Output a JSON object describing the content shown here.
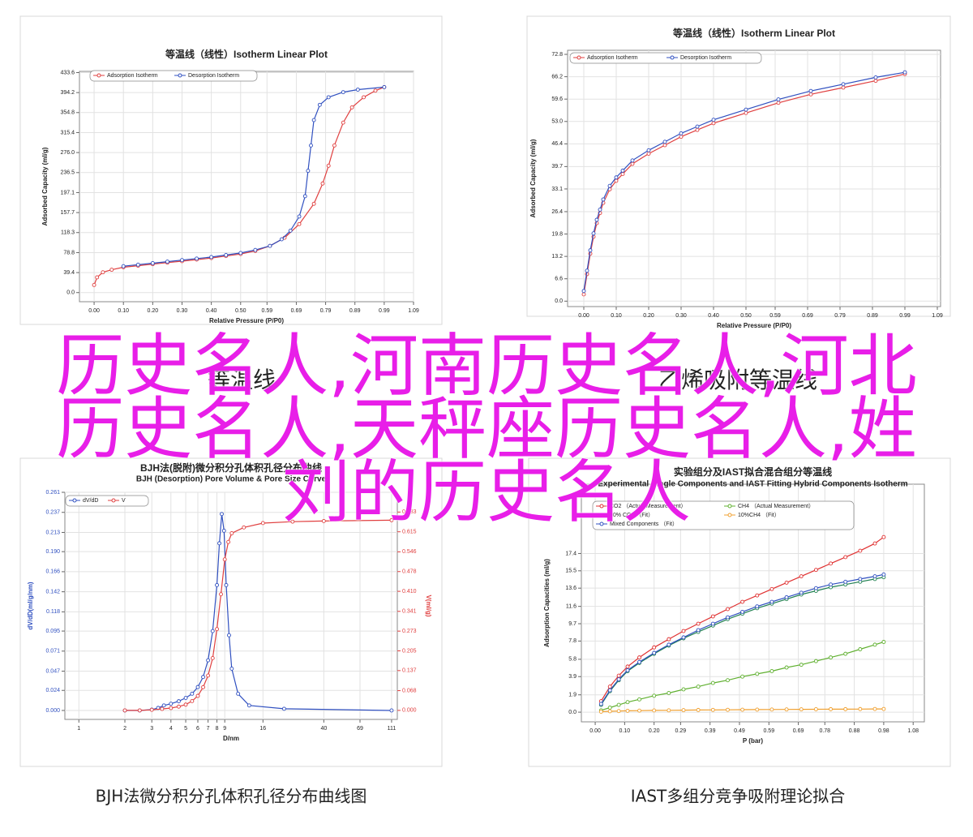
{
  "chart_data": [
    {
      "type": "line",
      "title": "等温线（线性）Isotherm Linear Plot",
      "xlabel": "Relative Pressure (P/P0)",
      "ylabel": "Adsorbed Capacity (ml/g)",
      "xlim": [
        -0.05,
        1.09
      ],
      "ylim": [
        -18,
        436
      ],
      "grid": true,
      "legend": "upper left",
      "xticks": [
        {
          "value": 0,
          "label": "0.00"
        },
        {
          "value": 0.1,
          "label": "0.10"
        },
        {
          "value": 0.2,
          "label": "0.20"
        },
        {
          "value": 0.3,
          "label": "0.30"
        },
        {
          "value": 0.4,
          "label": "0.40"
        },
        {
          "value": 0.5,
          "label": "0.50"
        },
        0.59,
        0.69,
        0.79,
        0.89,
        0.99,
        1.09
      ],
      "yticks": [
        {
          "value": 0,
          "label": "0.0"
        },
        39.4,
        78.8,
        118.3,
        157.7,
        197.1,
        236.5,
        {
          "value": 276,
          "label": "276.0"
        },
        315.4,
        354.8,
        394.2,
        433.6
      ],
      "series": [
        {
          "name": "Adsorption Isotherm",
          "color": "#e04040",
          "x": [
            0,
            0.01,
            0.03,
            0.06,
            0.1,
            0.15,
            0.2,
            0.25,
            0.3,
            0.35,
            0.4,
            0.45,
            0.5,
            0.55,
            0.6,
            0.65,
            0.7,
            0.75,
            0.78,
            0.8,
            0.82,
            0.85,
            0.88,
            0.92,
            0.96,
            0.99
          ],
          "values": [
            15,
            30,
            40,
            45,
            50,
            53,
            56,
            59,
            62,
            65,
            68,
            72,
            76,
            82,
            92,
            108,
            135,
            175,
            215,
            250,
            290,
            335,
            365,
            385,
            398,
            405
          ]
        },
        {
          "name": "Desorption Isotherm",
          "color": "#3050c0",
          "x": [
            0.99,
            0.9,
            0.85,
            0.8,
            0.77,
            0.75,
            0.74,
            0.73,
            0.72,
            0.7,
            0.67,
            0.64,
            0.6,
            0.55,
            0.5,
            0.45,
            0.4,
            0.35,
            0.3,
            0.25,
            0.2,
            0.15,
            0.1
          ],
          "values": [
            405,
            400,
            395,
            385,
            370,
            340,
            290,
            240,
            190,
            150,
            122,
            105,
            92,
            84,
            78,
            74,
            70,
            67,
            64,
            61,
            58,
            55,
            52
          ]
        }
      ]
    },
    {
      "type": "line",
      "title": "等温线（线性）Isotherm Linear Plot",
      "xlabel": "Relative Pressure (P/P0)",
      "ylabel": "Adsorbed Capacity (ml/g)",
      "xlim": [
        -0.05,
        1.1
      ],
      "ylim": [
        -1.6,
        74
      ],
      "grid": true,
      "legend": "upper left",
      "xticks": [
        {
          "value": 0,
          "label": "0.00"
        },
        {
          "value": 0.1,
          "label": "0.10"
        },
        {
          "value": 0.2,
          "label": "0.20"
        },
        {
          "value": 0.3,
          "label": "0.30"
        },
        {
          "value": 0.4,
          "label": "0.40"
        },
        {
          "value": 0.5,
          "label": "0.50"
        },
        0.59,
        0.69,
        0.79,
        0.89,
        0.99,
        1.09
      ],
      "yticks": [
        {
          "value": 0,
          "label": "0.0"
        },
        6.6,
        13.2,
        19.8,
        26.4,
        33.1,
        39.7,
        46.4,
        {
          "value": 53,
          "label": "53.0"
        },
        59.6,
        66.2,
        72.8
      ],
      "series": [
        {
          "name": "Adsorption Isotherm",
          "color": "#e04040",
          "x": [
            0,
            0.01,
            0.02,
            0.03,
            0.04,
            0.05,
            0.06,
            0.08,
            0.1,
            0.12,
            0.15,
            0.2,
            0.25,
            0.3,
            0.35,
            0.4,
            0.5,
            0.6,
            0.7,
            0.8,
            0.9,
            0.99
          ],
          "values": [
            2,
            8,
            14,
            19,
            23,
            26,
            29,
            33,
            35.5,
            37.5,
            40.5,
            43.5,
            46,
            48.5,
            50.5,
            52.5,
            55.5,
            58.5,
            61,
            63,
            65,
            67
          ]
        },
        {
          "name": "Desorption Isotherm",
          "color": "#3050c0",
          "x": [
            0,
            0.01,
            0.02,
            0.03,
            0.04,
            0.05,
            0.06,
            0.08,
            0.1,
            0.12,
            0.15,
            0.2,
            0.25,
            0.3,
            0.35,
            0.4,
            0.5,
            0.6,
            0.7,
            0.8,
            0.9,
            0.99
          ],
          "values": [
            3,
            9,
            15,
            20,
            24,
            27,
            30,
            34,
            36.5,
            38.5,
            41.5,
            44.5,
            47,
            49.5,
            51.5,
            53.5,
            56.5,
            59.5,
            62,
            64,
            66,
            67.5
          ]
        }
      ]
    },
    {
      "type": "line",
      "title": "BJH法(脱附)微分积分孔体积孔径分布曲线",
      "subtitle": "BJH (Desorption) Pore Volume & Pore Size Curve",
      "xlabel": "D/nm",
      "ylabel": "dV/dD(ml/g/nm)",
      "y2label": "V(ml/g)",
      "xscale": "log",
      "xlim": [
        0.81,
        121
      ],
      "ylim": [
        -0.0107,
        0.261
      ],
      "y2lim": [
        -0.031,
        0.751
      ],
      "grid": true,
      "legend": "upper left",
      "xticks": [
        1,
        2,
        3,
        4,
        5,
        6,
        7,
        8,
        9,
        16,
        40,
        69,
        111
      ],
      "yticks": [
        {
          "value": 0,
          "label": "0.000"
        },
        0.024,
        0.047,
        0.071,
        0.095,
        0.118,
        0.142,
        0.166,
        {
          "value": 0.19,
          "label": "0.190"
        },
        0.213,
        0.237,
        0.261
      ],
      "y2ticks": [
        {
          "value": 0,
          "label": "0.000"
        },
        0.068,
        0.137,
        0.205,
        0.273,
        0.341,
        {
          "value": 0.41,
          "label": "0.410"
        },
        0.478,
        0.546,
        0.615,
        0.683
      ],
      "series": [
        {
          "name": "dV/dD",
          "color": "#3050c0",
          "x": [
            2,
            2.5,
            3,
            3.3,
            3.6,
            4,
            4.5,
            5,
            5.5,
            6,
            6.5,
            7,
            7.5,
            8,
            8.3,
            8.6,
            8.9,
            9.2,
            9.6,
            10,
            11,
            13,
            22,
            111
          ],
          "values": [
            0,
            0,
            0.001,
            0.003,
            0.006,
            0.008,
            0.011,
            0.015,
            0.02,
            0.028,
            0.04,
            0.06,
            0.095,
            0.15,
            0.2,
            0.235,
            0.215,
            0.15,
            0.09,
            0.05,
            0.02,
            0.006,
            0.002,
            0
          ]
        },
        {
          "name": "V",
          "color": "#e04040",
          "axis": "y2",
          "x": [
            2,
            2.5,
            3,
            3.5,
            4,
            4.5,
            5,
            5.5,
            6,
            6.5,
            7,
            7.5,
            8,
            8.5,
            9,
            9.5,
            10,
            12,
            16,
            25,
            40,
            111
          ],
          "values": [
            0,
            0,
            0.002,
            0.005,
            0.008,
            0.013,
            0.02,
            0.032,
            0.05,
            0.08,
            0.12,
            0.18,
            0.28,
            0.4,
            0.52,
            0.58,
            0.61,
            0.63,
            0.645,
            0.65,
            0.652,
            0.655
          ]
        }
      ]
    },
    {
      "type": "line",
      "title": "实验组分及IAST拟合混合组分等温线",
      "subtitle": "Experimental Single Components and IAST Fitting Hybrid Components Isotherm",
      "xlabel": "P (bar)",
      "ylabel": "Adsorption Capacities (ml/g)",
      "xlim": [
        -0.047,
        1.118
      ],
      "ylim": [
        -1.06,
        25
      ],
      "grid": true,
      "legend": "upper left",
      "xticks": [
        {
          "value": 0,
          "label": "0.00"
        },
        {
          "value": 0.1,
          "label": "0.10"
        },
        {
          "value": 0.2,
          "label": "0.20"
        },
        0.29,
        0.39,
        0.49,
        0.59,
        0.69,
        0.78,
        0.88,
        0.98,
        1.08
      ],
      "yticks": [
        {
          "value": 0,
          "label": "0.0"
        },
        1.9,
        3.9,
        5.8,
        7.8,
        9.7,
        11.6,
        13.6,
        15.5,
        17.4
      ],
      "series": [
        {
          "name": "CO2 （Actual Measurement）",
          "color": "#e03030",
          "x": [
            0.02,
            0.05,
            0.08,
            0.11,
            0.15,
            0.2,
            0.25,
            0.3,
            0.35,
            0.4,
            0.45,
            0.5,
            0.55,
            0.6,
            0.65,
            0.7,
            0.75,
            0.8,
            0.85,
            0.9,
            0.95,
            0.98
          ],
          "values": [
            1.2,
            2.8,
            4,
            5,
            6,
            7.1,
            8,
            8.9,
            9.7,
            10.5,
            11.3,
            12.1,
            12.8,
            13.5,
            14.2,
            14.9,
            15.6,
            16.3,
            17,
            17.7,
            18.5,
            19.2
          ]
        },
        {
          "name": "CH4 （Actual Measurement）",
          "color": "#60b030",
          "x": [
            0.02,
            0.05,
            0.08,
            0.11,
            0.15,
            0.2,
            0.25,
            0.3,
            0.35,
            0.4,
            0.45,
            0.5,
            0.55,
            0.6,
            0.65,
            0.7,
            0.75,
            0.8,
            0.85,
            0.9,
            0.95,
            0.98
          ],
          "values": [
            0.2,
            0.5,
            0.8,
            1.1,
            1.4,
            1.8,
            2.1,
            2.5,
            2.8,
            3.2,
            3.5,
            3.9,
            4.2,
            4.5,
            4.9,
            5.2,
            5.6,
            6,
            6.4,
            6.9,
            7.4,
            7.7
          ]
        },
        {
          "name": "90% CO2 （Fit）",
          "color": "#208050",
          "x": [
            0.02,
            0.05,
            0.08,
            0.11,
            0.15,
            0.2,
            0.25,
            0.3,
            0.35,
            0.4,
            0.45,
            0.5,
            0.55,
            0.6,
            0.65,
            0.7,
            0.75,
            0.8,
            0.85,
            0.9,
            0.95,
            0.98
          ],
          "values": [
            0.8,
            2.3,
            3.5,
            4.5,
            5.4,
            6.4,
            7.3,
            8.1,
            8.8,
            9.5,
            10.2,
            10.8,
            11.4,
            11.9,
            12.4,
            12.9,
            13.3,
            13.7,
            14,
            14.3,
            14.6,
            14.8
          ]
        },
        {
          "name": "10%CH4 （Fit）",
          "color": "#f0a030",
          "x": [
            0.02,
            0.05,
            0.08,
            0.11,
            0.15,
            0.2,
            0.25,
            0.3,
            0.35,
            0.4,
            0.45,
            0.5,
            0.55,
            0.6,
            0.65,
            0.7,
            0.75,
            0.8,
            0.85,
            0.9,
            0.95,
            0.98
          ],
          "values": [
            0.05,
            0.1,
            0.12,
            0.15,
            0.17,
            0.19,
            0.2,
            0.22,
            0.24,
            0.25,
            0.26,
            0.27,
            0.28,
            0.29,
            0.3,
            0.31,
            0.32,
            0.33,
            0.33,
            0.34,
            0.35,
            0.35
          ]
        },
        {
          "name": "Mixed Components （Fit）",
          "color": "#3050c0",
          "x": [
            0.02,
            0.05,
            0.08,
            0.11,
            0.15,
            0.2,
            0.25,
            0.3,
            0.35,
            0.4,
            0.45,
            0.5,
            0.55,
            0.6,
            0.65,
            0.7,
            0.75,
            0.8,
            0.85,
            0.9,
            0.95,
            0.98
          ],
          "values": [
            0.9,
            2.4,
            3.6,
            4.6,
            5.5,
            6.5,
            7.4,
            8.2,
            9,
            9.7,
            10.4,
            11,
            11.6,
            12.1,
            12.6,
            13.1,
            13.6,
            14,
            14.3,
            14.6,
            14.9,
            15.1
          ]
        }
      ]
    }
  ],
  "sub_captions": [
    "等温线",
    "乙烯吸附等温线"
  ],
  "captions": [
    "BJH法微分积分孔体积孔径分布曲线图",
    "IAST多组分竞争吸附理论拟合"
  ],
  "overlay_title": "历史名人,河南历史名人,河北历史名人,天秤座历史名人,姓刘的历史名人"
}
